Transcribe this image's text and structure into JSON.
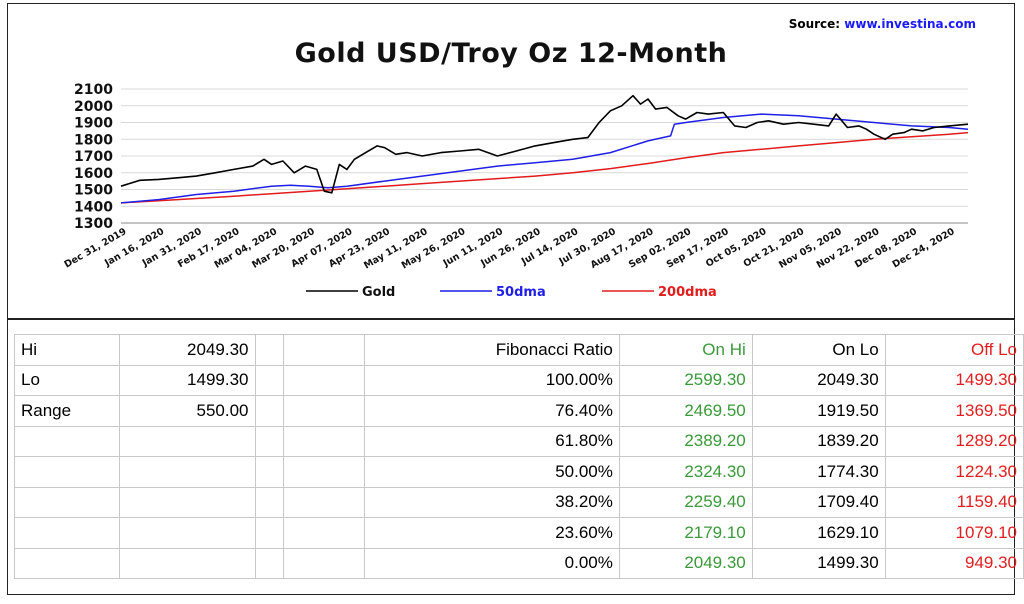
{
  "source_label": "Source:",
  "source_url": "www.investina.com",
  "chart_data": {
    "type": "line",
    "title": "Gold USD/Troy Oz 12-Month",
    "ylim": [
      1300,
      2100
    ],
    "yticks": [
      1300,
      1400,
      1500,
      1600,
      1700,
      1800,
      1900,
      2000,
      2100
    ],
    "xticks": [
      "Dec 31, 2019",
      "Jan 16, 2020",
      "Jan 31, 2020",
      "Feb 17, 2020",
      "Mar 04, 2020",
      "Mar 20, 2020",
      "Apr 07, 2020",
      "Apr 23, 2020",
      "May 11, 2020",
      "May 26, 2020",
      "Jun 11, 2020",
      "Jun 26, 2020",
      "Jul 14, 2020",
      "Jul 30, 2020",
      "Aug 17, 2020",
      "Sep 02, 2020",
      "Sep 17, 2020",
      "Oct 05, 2020",
      "Oct 21, 2020",
      "Nov 05, 2020",
      "Nov 22, 2020",
      "Dec 08, 2020",
      "Dec 24, 2020"
    ],
    "grid": true,
    "legend_position": "bottom",
    "series": [
      {
        "name": "Gold",
        "color": "#000000",
        "x": [
          0,
          0.5,
          1,
          1.5,
          2,
          2.5,
          3,
          3.5,
          3.8,
          4,
          4.3,
          4.6,
          4.9,
          5.2,
          5.4,
          5.6,
          5.8,
          6,
          6.2,
          6.5,
          6.8,
          7,
          7.3,
          7.6,
          8,
          8.5,
          9,
          9.5,
          10,
          10.5,
          11,
          11.5,
          12,
          12.4,
          12.7,
          13,
          13.3,
          13.6,
          13.8,
          14,
          14.2,
          14.5,
          14.8,
          15,
          15.3,
          15.6,
          16,
          16.3,
          16.6,
          16.9,
          17.2,
          17.6,
          18,
          18.4,
          18.8,
          19,
          19.3,
          19.6,
          19.8,
          20,
          20.3,
          20.5,
          20.8,
          21,
          21.3,
          21.6,
          22,
          22.5
        ],
        "values": [
          1520,
          1555,
          1560,
          1570,
          1580,
          1600,
          1620,
          1640,
          1680,
          1650,
          1670,
          1600,
          1640,
          1620,
          1490,
          1480,
          1650,
          1620,
          1680,
          1720,
          1760,
          1750,
          1710,
          1720,
          1700,
          1720,
          1730,
          1740,
          1700,
          1730,
          1760,
          1780,
          1800,
          1810,
          1900,
          1970,
          2000,
          2060,
          2010,
          2040,
          1980,
          1990,
          1940,
          1920,
          1960,
          1950,
          1960,
          1880,
          1870,
          1900,
          1910,
          1890,
          1900,
          1890,
          1880,
          1950,
          1870,
          1880,
          1860,
          1830,
          1800,
          1830,
          1840,
          1860,
          1850,
          1870,
          1880,
          1890
        ]
      },
      {
        "name": "50dma",
        "color": "#1f1fe6",
        "x": [
          0,
          1,
          2,
          3,
          4,
          4.5,
          5,
          5.5,
          6,
          7,
          8,
          9,
          10,
          11,
          12,
          13,
          14,
          14.6,
          14.7,
          15,
          16,
          17,
          18,
          19,
          20,
          21,
          22,
          22.5
        ],
        "values": [
          1420,
          1440,
          1470,
          1490,
          1520,
          1525,
          1520,
          1510,
          1520,
          1550,
          1580,
          1610,
          1640,
          1660,
          1680,
          1720,
          1790,
          1820,
          1890,
          1900,
          1930,
          1950,
          1940,
          1920,
          1900,
          1880,
          1870,
          1860
        ]
      },
      {
        "name": "200dma",
        "color": "#e21b1b",
        "x": [
          0,
          1,
          2,
          3,
          4,
          5,
          6,
          7,
          8,
          9,
          10,
          11,
          12,
          13,
          14,
          15,
          16,
          17,
          18,
          19,
          20,
          21,
          22,
          22.5
        ],
        "values": [
          1420,
          1433,
          1446,
          1460,
          1475,
          1490,
          1505,
          1520,
          1535,
          1550,
          1565,
          1580,
          1600,
          1625,
          1655,
          1690,
          1720,
          1740,
          1760,
          1780,
          1800,
          1815,
          1830,
          1840
        ]
      }
    ]
  },
  "table": {
    "rows": [
      {
        "c0": "Hi",
        "c1": "2049.30",
        "c2": "",
        "c3": "",
        "c4": "Fibonacci  Ratio",
        "c5": "On Hi",
        "c6": "On Lo",
        "c7": "Off Lo"
      },
      {
        "c0": "Lo",
        "c1": "1499.30",
        "c2": "",
        "c3": "",
        "c4": "100.00%",
        "c5": "2599.30",
        "c6": "2049.30",
        "c7": "1499.30"
      },
      {
        "c0": "Range",
        "c1": "550.00",
        "c2": "",
        "c3": "",
        "c4": "76.40%",
        "c5": "2469.50",
        "c6": "1919.50",
        "c7": "1369.50"
      },
      {
        "c0": "",
        "c1": "",
        "c2": "",
        "c3": "",
        "c4": "61.80%",
        "c5": "2389.20",
        "c6": "1839.20",
        "c7": "1289.20"
      },
      {
        "c0": "",
        "c1": "",
        "c2": "",
        "c3": "",
        "c4": "50.00%",
        "c5": "2324.30",
        "c6": "1774.30",
        "c7": "1224.30"
      },
      {
        "c0": "",
        "c1": "",
        "c2": "",
        "c3": "",
        "c4": "38.20%",
        "c5": "2259.40",
        "c6": "1709.40",
        "c7": "1159.40"
      },
      {
        "c0": "",
        "c1": "",
        "c2": "",
        "c3": "",
        "c4": "23.60%",
        "c5": "2179.10",
        "c6": "1629.10",
        "c7": "1079.10"
      },
      {
        "c0": "",
        "c1": "",
        "c2": "",
        "c3": "",
        "c4": "0.00%",
        "c5": "2049.30",
        "c6": "1499.30",
        "c7": "949.30"
      }
    ]
  }
}
